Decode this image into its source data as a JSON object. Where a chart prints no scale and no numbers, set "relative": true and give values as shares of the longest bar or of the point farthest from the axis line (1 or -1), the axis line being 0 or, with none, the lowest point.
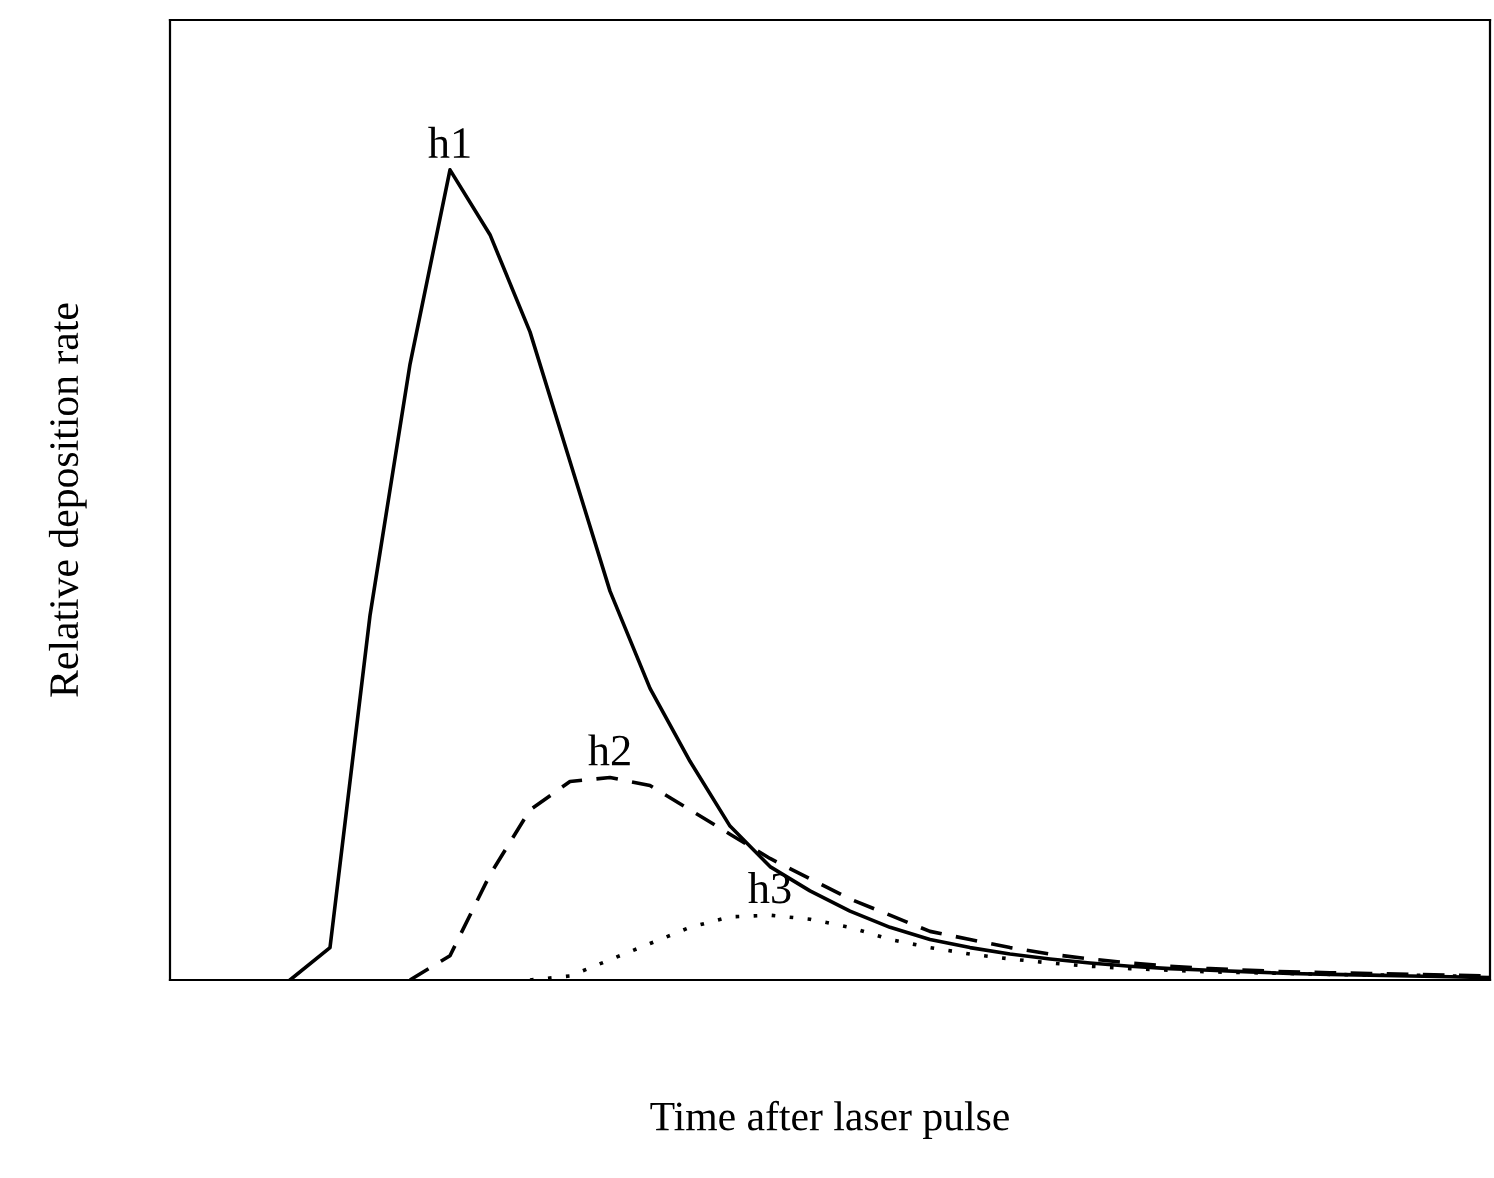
{
  "chart_data": {
    "type": "line",
    "relative": true,
    "xlabel": "Time after laser pulse",
    "ylabel": "Relative deposition rate",
    "categories": [
      null,
      null,
      null,
      null,
      null,
      null,
      null,
      null,
      null,
      null,
      null,
      null,
      null,
      null,
      null,
      null,
      null,
      null,
      null,
      null,
      null,
      null,
      null,
      null,
      null,
      null,
      null,
      null,
      null,
      null,
      null,
      null,
      null,
      null
    ],
    "series": [
      {
        "name": "h1",
        "color": "#000000",
        "line_style": "solid",
        "values": [
          null,
          null,
          null,
          0,
          0.04,
          0.45,
          0.76,
          1.0,
          0.92,
          0.8,
          0.64,
          0.48,
          0.36,
          0.27,
          0.19,
          0.14,
          0.11,
          0.085,
          0.065,
          0.05,
          0.04,
          0.032,
          0.026,
          0.021,
          0.017,
          0.014,
          0.012,
          0.01,
          0.008,
          0.007,
          0.006,
          0.005,
          0.004,
          0.003
        ]
      },
      {
        "name": "h2",
        "color": "#000000",
        "line_style": "dashed",
        "values": [
          null,
          null,
          null,
          null,
          null,
          null,
          0,
          0.03,
          0.13,
          0.21,
          0.245,
          0.25,
          0.24,
          0.21,
          0.18,
          0.15,
          0.125,
          0.1,
          0.08,
          0.06,
          0.05,
          0.04,
          0.032,
          0.026,
          0.021,
          0.017,
          0.014,
          0.012,
          0.01,
          0.009,
          0.008,
          0.007,
          0.006,
          0.005
        ]
      },
      {
        "name": "h3",
        "color": "#000000",
        "line_style": "dotted",
        "values": [
          null,
          null,
          null,
          null,
          null,
          null,
          null,
          null,
          null,
          0,
          0.005,
          0.025,
          0.045,
          0.065,
          0.078,
          0.08,
          0.075,
          0.065,
          0.05,
          0.04,
          0.032,
          0.026,
          0.021,
          0.017,
          0.014,
          0.012,
          0.01,
          0.009,
          0.008,
          0.007,
          0.006,
          0.006,
          0.005,
          0.005
        ]
      }
    ],
    "grid": false,
    "legend": false,
    "marker": "none"
  }
}
